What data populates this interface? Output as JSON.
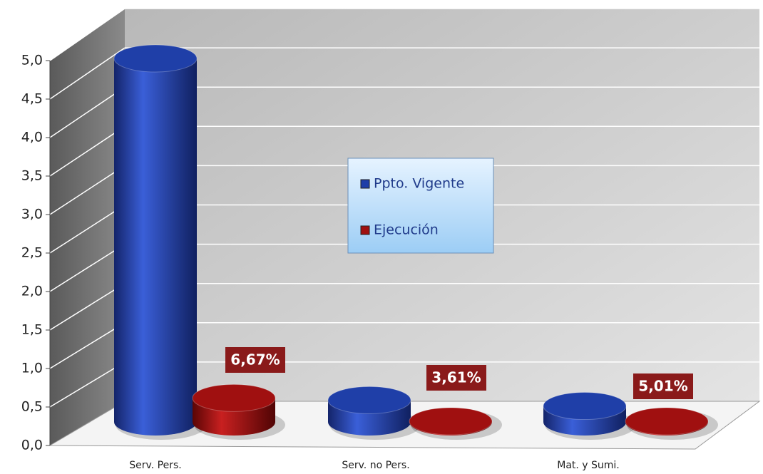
{
  "chart_data": {
    "type": "bar3d",
    "categories": [
      "Serv. Pers.",
      "Serv. no Pers.",
      "Mat. y Sumi."
    ],
    "series": [
      {
        "name": "Ppto. Vigente",
        "color": "#1f3fa8",
        "values": [
          5.0,
          0.3,
          0.22
        ]
      },
      {
        "name": "Ejecución",
        "color": "#a01010",
        "values": [
          0.33,
          0.01,
          0.01
        ]
      }
    ],
    "annotations": [
      "6,67%",
      "3,61%",
      "5,01%"
    ],
    "ylim": [
      0,
      5
    ],
    "yticks": [
      {
        "value": 0,
        "label": "0,0"
      },
      {
        "value": 0.5,
        "label": "0,5"
      },
      {
        "value": 1,
        "label": "1,0"
      },
      {
        "value": 1.5,
        "label": "1,5"
      },
      {
        "value": 2,
        "label": "2,0"
      },
      {
        "value": 2.5,
        "label": "2,5"
      },
      {
        "value": 3,
        "label": "3,0"
      },
      {
        "value": 3.5,
        "label": "3,5"
      },
      {
        "value": 4,
        "label": "4,0"
      },
      {
        "value": 4.5,
        "label": "4,5"
      },
      {
        "value": 5,
        "label": "5,0"
      }
    ],
    "grid": true,
    "legend": "center"
  }
}
